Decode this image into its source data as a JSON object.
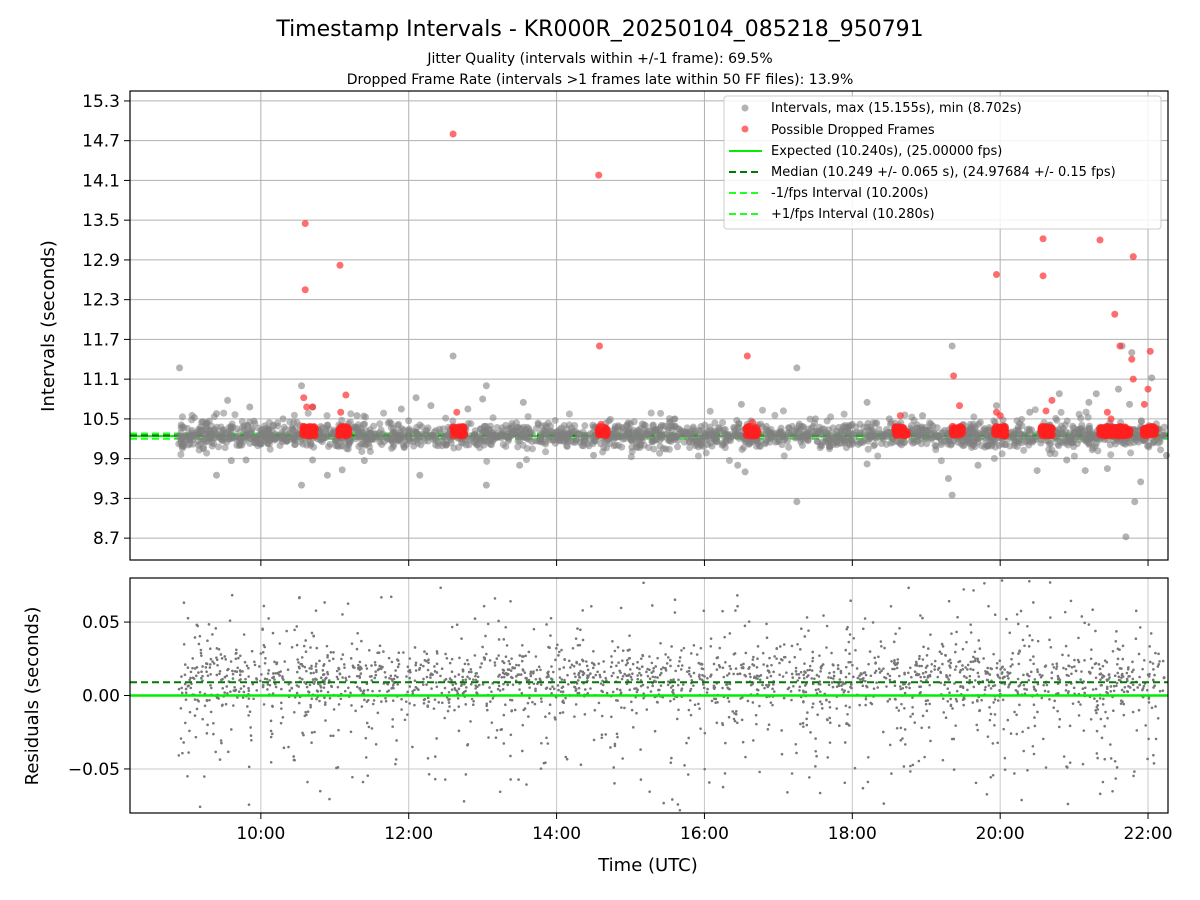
{
  "chart_data": [
    {
      "type": "scatter",
      "title": "Timestamp Intervals - KR000R_20250104_085218_950791",
      "subtitle_lines": [
        "Jitter Quality (intervals within +/-1 frame): 69.5%",
        "Dropped Frame Rate (intervals >1 frames late within 50 FF files): 13.9%"
      ],
      "ylabel": "Intervals (seconds)",
      "x_unit": "hours UTC",
      "xlim": [
        8.23,
        22.27
      ],
      "ylim": [
        8.37,
        15.45
      ],
      "grid": true,
      "legend_position": "top-right",
      "y_ticks": [
        "8.7",
        "9.3",
        "9.9",
        "10.5",
        "11.1",
        "11.7",
        "12.3",
        "12.9",
        "13.5",
        "14.1",
        "14.7",
        "15.3"
      ],
      "y_tick_values": [
        8.7,
        9.3,
        9.9,
        10.5,
        11.1,
        11.7,
        12.3,
        12.9,
        13.5,
        14.1,
        14.7,
        15.3
      ],
      "expected_interval": 10.24,
      "median_interval": 10.249,
      "minus_fps_interval": 10.2,
      "plus_fps_interval": 10.28,
      "series": [
        {
          "name": "Intervals, max (15.155s), min (8.702s)",
          "color": "#808080",
          "note_dense_band": "about 2000 points clustered between 9.9 and 10.6 s across 08:52-22:15",
          "points": [
            [
              8.9,
              11.27
            ],
            [
              9.1,
              10.52
            ],
            [
              9.4,
              10.58
            ],
            [
              9.55,
              10.78
            ],
            [
              9.4,
              9.65
            ],
            [
              9.6,
              9.87
            ],
            [
              9.85,
              10.68
            ],
            [
              9.8,
              9.88
            ],
            [
              10.55,
              9.5
            ],
            [
              10.55,
              11.0
            ],
            [
              10.7,
              9.88
            ],
            [
              10.7,
              10.68
            ],
            [
              10.9,
              9.65
            ],
            [
              11.1,
              9.73
            ],
            [
              11.4,
              9.87
            ],
            [
              11.9,
              10.65
            ],
            [
              12.1,
              10.82
            ],
            [
              12.15,
              9.65
            ],
            [
              12.3,
              10.7
            ],
            [
              12.6,
              11.45
            ],
            [
              12.8,
              10.65
            ],
            [
              13.05,
              11.0
            ],
            [
              13.05,
              9.5
            ],
            [
              13.0,
              10.8
            ],
            [
              13.55,
              10.75
            ],
            [
              13.5,
              9.8
            ],
            [
              13.85,
              10.4
            ],
            [
              15.0,
              10.43
            ],
            [
              15.6,
              10.5
            ],
            [
              16.45,
              9.8
            ],
            [
              16.5,
              10.72
            ],
            [
              16.55,
              9.7
            ],
            [
              17.25,
              11.27
            ],
            [
              17.25,
              9.25
            ],
            [
              17.5,
              10.5
            ],
            [
              18.2,
              10.75
            ],
            [
              18.2,
              9.82
            ],
            [
              18.5,
              10.5
            ],
            [
              18.95,
              10.55
            ],
            [
              19.3,
              9.6
            ],
            [
              19.35,
              9.35
            ],
            [
              19.35,
              11.6
            ],
            [
              19.6,
              10.38
            ],
            [
              19.7,
              9.8
            ],
            [
              19.95,
              10.7
            ],
            [
              20.4,
              10.6
            ],
            [
              20.5,
              9.72
            ],
            [
              20.8,
              10.88
            ],
            [
              20.9,
              9.88
            ],
            [
              21.15,
              9.72
            ],
            [
              21.2,
              10.75
            ],
            [
              21.3,
              10.88
            ],
            [
              21.45,
              9.75
            ],
            [
              21.6,
              10.95
            ],
            [
              21.65,
              11.6
            ],
            [
              21.75,
              10.72
            ],
            [
              21.78,
              11.5
            ],
            [
              21.82,
              9.25
            ],
            [
              21.7,
              8.72
            ],
            [
              21.9,
              9.55
            ],
            [
              22.05,
              11.12
            ],
            [
              22.15,
              10.35
            ],
            [
              22.25,
              9.95
            ],
            [
              14.5,
              9.95
            ],
            [
              15.2,
              10.4
            ],
            [
              17.9,
              10.4
            ],
            [
              11.3,
              10.55
            ],
            [
              10.3,
              10.5
            ],
            [
              9.2,
              10.45
            ]
          ]
        },
        {
          "name": "Possible Dropped Frames",
          "color": "#ff4040",
          "note_clusters": "dense groups near 10.24-10.40 s at about 10:40, 11:10, 12:40, 14:40, 16:40, 18:40, 19:25, 20:00, 20:40, 21:30-22:05",
          "points": [
            [
              10.6,
              13.45
            ],
            [
              10.6,
              12.45
            ],
            [
              11.07,
              12.82
            ],
            [
              12.6,
              14.8
            ],
            [
              14.57,
              14.18
            ],
            [
              14.58,
              11.6
            ],
            [
              16.58,
              11.45
            ],
            [
              19.95,
              12.68
            ],
            [
              20.58,
              13.22
            ],
            [
              20.58,
              12.66
            ],
            [
              21.35,
              13.2
            ],
            [
              21.8,
              12.95
            ],
            [
              21.55,
              12.08
            ],
            [
              21.62,
              11.6
            ],
            [
              22.03,
              11.52
            ],
            [
              21.78,
              11.4
            ],
            [
              21.8,
              11.1
            ],
            [
              22.0,
              10.95
            ],
            [
              19.37,
              11.15
            ],
            [
              10.58,
              10.82
            ],
            [
              10.62,
              10.68
            ],
            [
              10.7,
              10.68
            ],
            [
              11.15,
              10.86
            ],
            [
              11.08,
              10.6
            ],
            [
              19.45,
              10.7
            ],
            [
              19.95,
              10.6
            ],
            [
              20.0,
              10.55
            ],
            [
              20.7,
              10.78
            ],
            [
              20.62,
              10.62
            ],
            [
              21.45,
              10.6
            ],
            [
              21.95,
              10.72
            ],
            [
              18.65,
              10.55
            ],
            [
              12.65,
              10.6
            ],
            [
              14.6,
              10.42
            ],
            [
              16.65,
              10.45
            ],
            [
              21.5,
              10.5
            ]
          ]
        }
      ],
      "lines": [
        {
          "name": "Expected (10.240s), (25.00000 fps)",
          "color": "#00ee00",
          "style": "solid"
        },
        {
          "name": "Median (10.249 +/- 0.065 s), (24.97684 +/- 0.15 fps)",
          "color": "#007a00",
          "style": "dashed"
        },
        {
          "name": "-1/fps Interval (10.200s)",
          "color": "#22ff22",
          "style": "dashed"
        },
        {
          "name": "+1/fps Interval (10.280s)",
          "color": "#22ff22",
          "style": "dashed"
        }
      ]
    },
    {
      "type": "scatter",
      "xlabel": "Time (UTC)",
      "ylabel": "Residuals (seconds)",
      "xlim": [
        8.23,
        22.27
      ],
      "ylim": [
        -0.08,
        0.08
      ],
      "grid": true,
      "x_ticks": [
        "10:00",
        "12:00",
        "14:00",
        "16:00",
        "18:00",
        "20:00",
        "22:00"
      ],
      "x_tick_values": [
        10,
        12,
        14,
        16,
        18,
        20,
        22
      ],
      "y_ticks": [
        "−0.05",
        "0.00",
        "0.05"
      ],
      "y_tick_values": [
        -0.05,
        0.0,
        0.05
      ],
      "zero_line": 0.0,
      "median_residual": 0.009,
      "series": [
        {
          "name": "",
          "color": "#777777",
          "note": "about 2000 residual points spread between -0.08 and 0.08 s, densest between 0.00 and 0.03 s"
        }
      ]
    }
  ]
}
